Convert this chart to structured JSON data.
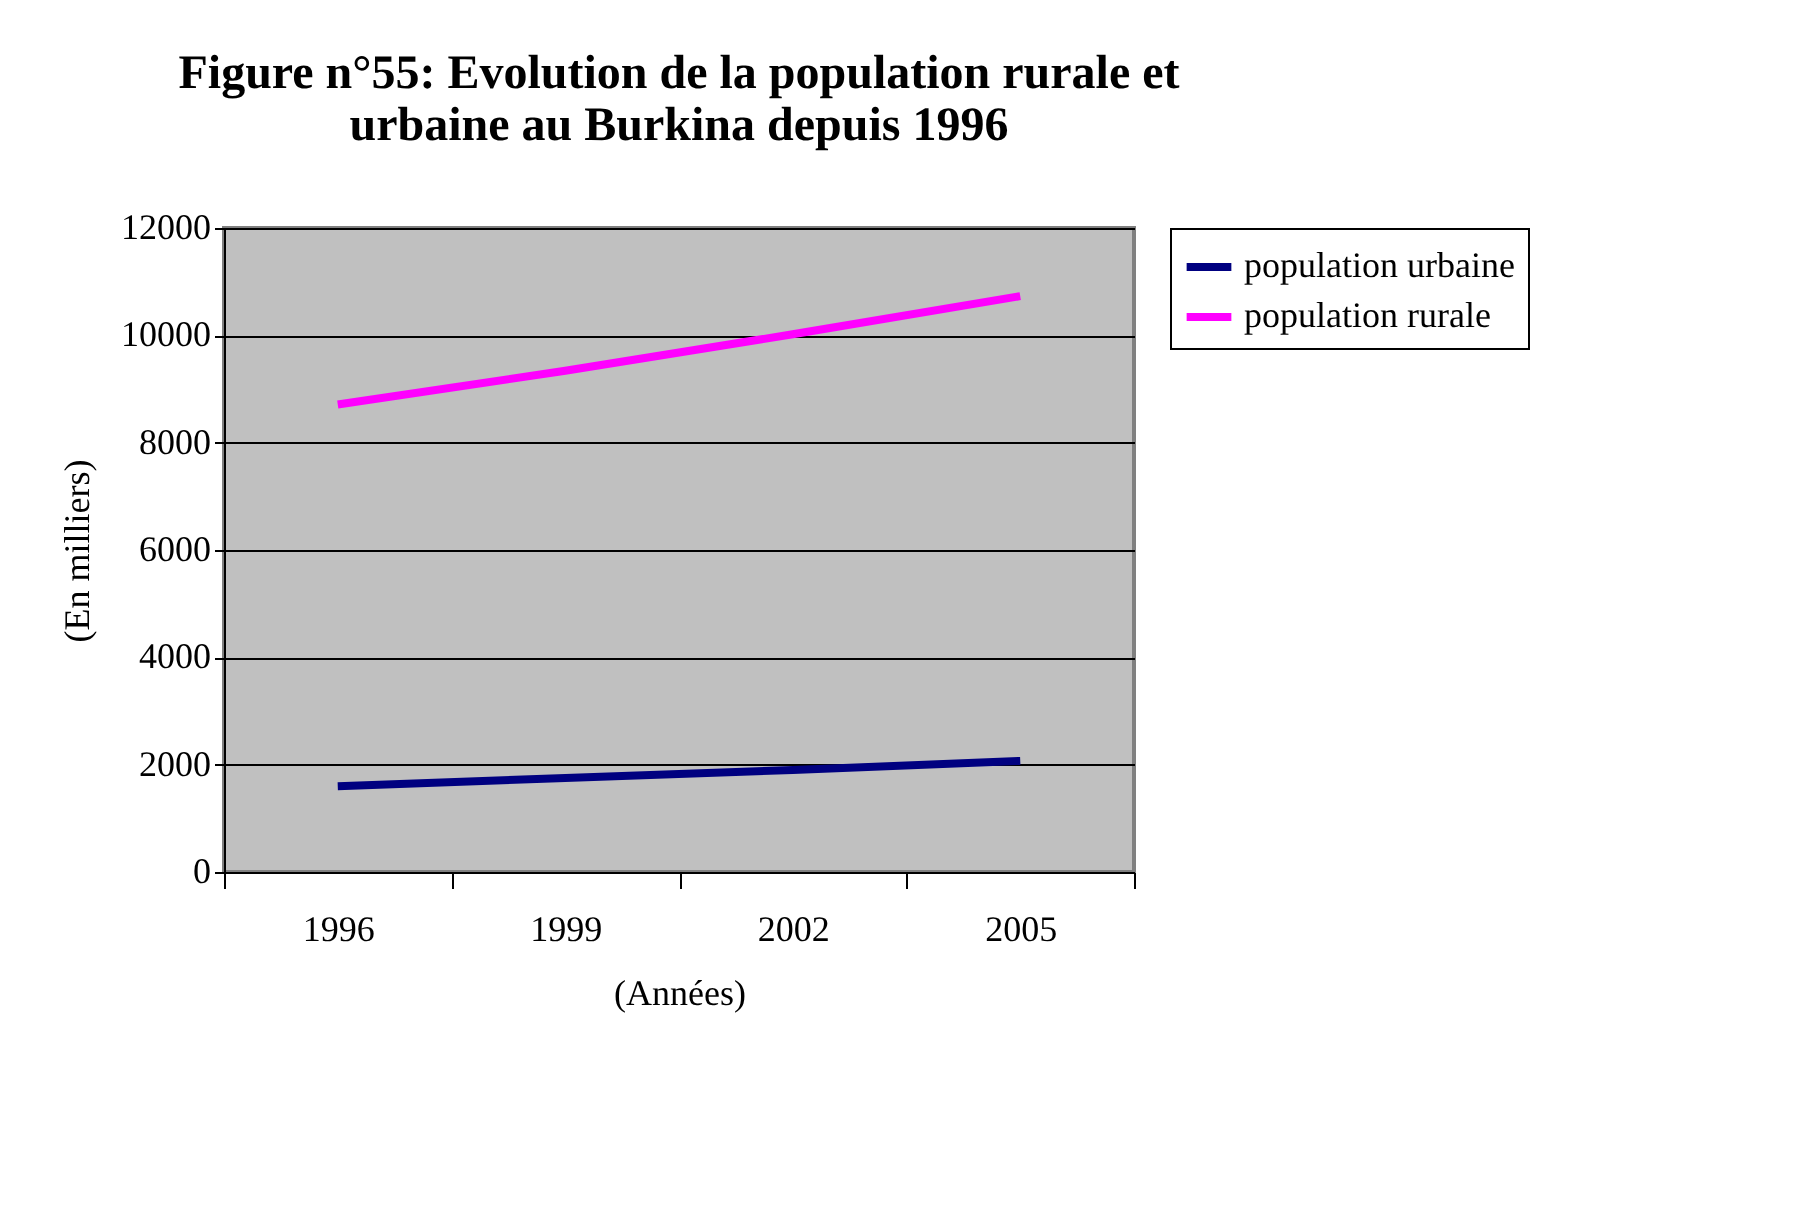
{
  "chart_data": {
    "type": "line",
    "title": [
      "Figure n°55: Evolution de la population rurale et",
      "urbaine au Burkina depuis 1996"
    ],
    "xlabel": "(Années)",
    "ylabel": "(En milliers)",
    "categories": [
      "1996",
      "1999",
      "2002",
      "2005"
    ],
    "series": [
      {
        "name": "population urbaine",
        "color": "#000080",
        "values": [
          1600,
          1750,
          1900,
          2070
        ]
      },
      {
        "name": "population rurale",
        "color": "#ff00ff",
        "values": [
          8710,
          9340,
          10020,
          10730
        ]
      }
    ],
    "ylim": [
      0,
      12000
    ],
    "yticks": [
      0,
      2000,
      4000,
      6000,
      8000,
      10000,
      12000
    ],
    "grid": "y",
    "legend": "right",
    "marker": "none",
    "line_style": "solid"
  }
}
